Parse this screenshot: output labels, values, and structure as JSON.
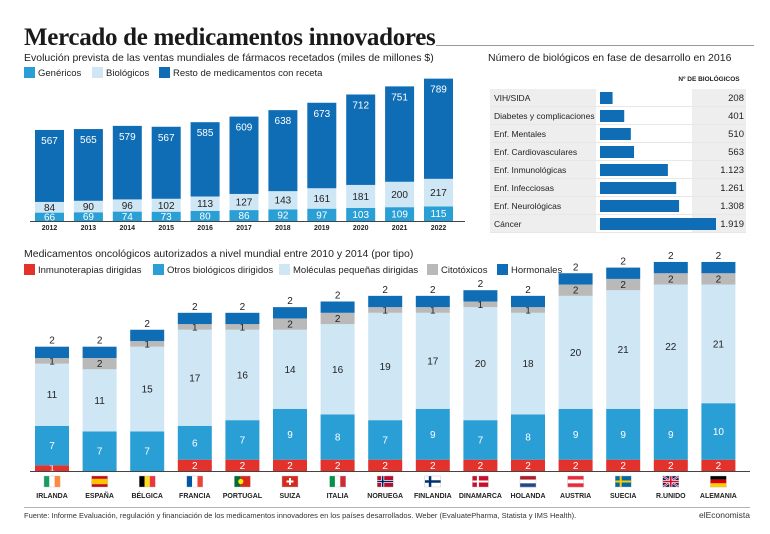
{
  "title": "Mercado de medicamentos innovadores",
  "source": "Fuente: Informe Evaluación, regulación y financiación de los medicamentos innovadores en los países desarrollados. Weber (EvaluatePharma, Statista y IMS Health).",
  "brand": "elEconomista",
  "colors": {
    "generics": "#2a9fd6",
    "biologics": "#cfe6f5",
    "rest": "#0f6db6",
    "immuno": "#e3312c",
    "otherbio": "#2a9fd6",
    "smallmol": "#cfe6f5",
    "cyto": "#b9b9b9",
    "hormonal": "#0f6db6",
    "hbar": "#0f6db6"
  },
  "chart_data": [
    {
      "type": "bar",
      "stacked": true,
      "title": "Evolución prevista de las ventas mundiales de fármacos recetados (miles de millones $)",
      "categories": [
        "2012",
        "2013",
        "2014",
        "2015",
        "2016",
        "2017",
        "2018",
        "2019",
        "2020",
        "2021",
        "2022"
      ],
      "series": [
        {
          "name": "Genéricos",
          "values": [
            66,
            69,
            74,
            73,
            80,
            86,
            92,
            97,
            103,
            109,
            115
          ]
        },
        {
          "name": "Biológicos",
          "values": [
            84,
            90,
            96,
            102,
            113,
            127,
            143,
            161,
            181,
            200,
            217
          ]
        },
        {
          "name": "Resto de medicamentos con receta",
          "values": [
            567,
            565,
            579,
            567,
            585,
            609,
            638,
            673,
            712,
            751,
            789
          ]
        }
      ],
      "legend": "top-left"
    },
    {
      "type": "bar",
      "orientation": "horizontal",
      "title": "Número de biológicos en fase de desarrollo en 2016",
      "column_header": "Nº DE BIOLÓGICOS",
      "categories": [
        "VIH/SIDA",
        "Diabetes y complicaciones",
        "Enf. Mentales",
        "Enf. Cardiovasculares",
        "Enf. Inmunológicas",
        "Enf. Infecciosas",
        "Enf. Neurológicas",
        "Cáncer"
      ],
      "values": [
        208,
        401,
        510,
        563,
        1123,
        1261,
        1308,
        1919
      ],
      "value_labels": [
        "208",
        "401",
        "510",
        "563",
        "1.123",
        "1.261",
        "1.308",
        "1.919"
      ]
    },
    {
      "type": "bar",
      "stacked": true,
      "title": "Medicamentos oncológicos autorizados a nivel mundial entre 2010 y 2014 (por tipo)",
      "categories": [
        "IRLANDA",
        "ESPAÑA",
        "BÉLGICA",
        "FRANCIA",
        "PORTUGAL",
        "SUIZA",
        "ITALIA",
        "NORUEGA",
        "FINLANDIA",
        "DINAMARCA",
        "HOLANDA",
        "AUSTRIA",
        "SUECIA",
        "R.UNIDO",
        "ALEMANIA"
      ],
      "series": [
        {
          "name": "Inmunoterapias dirigidas",
          "values": [
            1,
            0,
            0,
            2,
            2,
            2,
            2,
            2,
            2,
            2,
            2,
            2,
            2,
            2,
            2
          ]
        },
        {
          "name": "Otros biológicos dirigidos",
          "values": [
            7,
            7,
            7,
            6,
            7,
            9,
            8,
            7,
            9,
            7,
            8,
            9,
            9,
            9,
            10
          ]
        },
        {
          "name": "Moléculas pequeñas dirigidas",
          "values": [
            11,
            11,
            15,
            17,
            16,
            14,
            16,
            19,
            17,
            20,
            18,
            20,
            21,
            22,
            21
          ]
        },
        {
          "name": "Citotóxicos",
          "values": [
            1,
            2,
            1,
            1,
            1,
            2,
            2,
            1,
            1,
            1,
            1,
            2,
            2,
            2,
            2
          ]
        },
        {
          "name": "Hormonales",
          "values": [
            2,
            2,
            2,
            2,
            2,
            2,
            2,
            2,
            2,
            2,
            2,
            2,
            2,
            2,
            2
          ]
        }
      ],
      "legend": "top-left",
      "flags": [
        "ie",
        "es",
        "be",
        "fr",
        "pt",
        "ch",
        "it",
        "no",
        "fi",
        "dk",
        "nl",
        "at",
        "se",
        "uk",
        "de"
      ]
    }
  ]
}
